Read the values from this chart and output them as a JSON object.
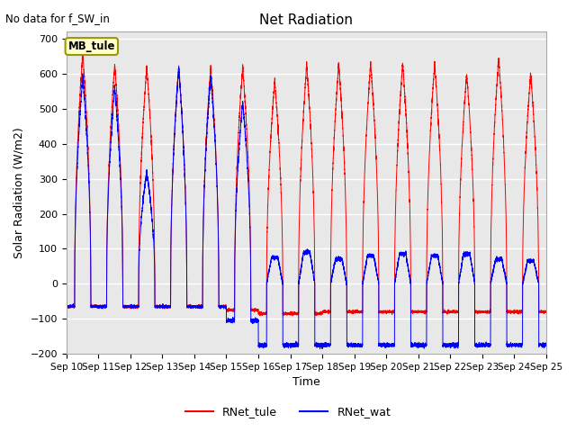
{
  "title": "Net Radiation",
  "subtitle": "No data for f_SW_in",
  "xlabel": "Time",
  "ylabel": "Solar Radiation (W/m2)",
  "ylim": [
    -200,
    720
  ],
  "yticks": [
    -200,
    -100,
    0,
    100,
    200,
    300,
    400,
    500,
    600,
    700
  ],
  "legend_labels": [
    "RNet_tule",
    "RNet_wat"
  ],
  "legend_colors": [
    "red",
    "blue"
  ],
  "box_label": "MB_tule",
  "box_color": "#ffffcc",
  "box_edge_color": "#999900",
  "plot_bg_color": "#e8e8e8",
  "grid_color": "white",
  "line_color_red": "red",
  "line_color_blue": "blue",
  "n_days": 15,
  "figsize": [
    6.4,
    4.8
  ],
  "dpi": 100,
  "day_params": [
    {
      "peak_r": 660,
      "peak_b": 595,
      "night_r": -65,
      "night_b": -65,
      "b_deep": false,
      "day_start": 6.2,
      "day_end": 18.3
    },
    {
      "peak_r": 625,
      "peak_b": 560,
      "night_r": -65,
      "night_b": -65,
      "b_deep": false,
      "day_start": 6.2,
      "day_end": 18.3
    },
    {
      "peak_r": 620,
      "peak_b": 320,
      "night_r": -65,
      "night_b": -65,
      "b_deep": false,
      "day_start": 6.2,
      "day_end": 18.3
    },
    {
      "peak_r": 620,
      "peak_b": 615,
      "night_r": -65,
      "night_b": -65,
      "b_deep": false,
      "day_start": 6.2,
      "day_end": 18.3
    },
    {
      "peak_r": 620,
      "peak_b": 595,
      "night_r": -65,
      "night_b": -65,
      "b_deep": false,
      "day_start": 6.2,
      "day_end": 18.3
    },
    {
      "peak_r": 620,
      "peak_b": 520,
      "night_r": -75,
      "night_b": -105,
      "b_deep": true,
      "day_start": 6.2,
      "day_end": 18.3
    },
    {
      "peak_r": 580,
      "peak_b": 75,
      "night_r": -85,
      "night_b": -175,
      "b_deep": true,
      "day_start": 6.2,
      "day_end": 18.3
    },
    {
      "peak_r": 625,
      "peak_b": 90,
      "night_r": -85,
      "night_b": -175,
      "b_deep": true,
      "day_start": 6.2,
      "day_end": 18.3
    },
    {
      "peak_r": 630,
      "peak_b": 70,
      "night_r": -80,
      "night_b": -175,
      "b_deep": true,
      "day_start": 6.2,
      "day_end": 18.3
    },
    {
      "peak_r": 630,
      "peak_b": 80,
      "night_r": -80,
      "night_b": -175,
      "b_deep": true,
      "day_start": 6.2,
      "day_end": 18.3
    },
    {
      "peak_r": 630,
      "peak_b": 85,
      "night_r": -80,
      "night_b": -175,
      "b_deep": true,
      "day_start": 6.2,
      "day_end": 18.3
    },
    {
      "peak_r": 630,
      "peak_b": 80,
      "night_r": -80,
      "night_b": -175,
      "b_deep": true,
      "day_start": 6.2,
      "day_end": 18.3
    },
    {
      "peak_r": 600,
      "peak_b": 85,
      "night_r": -80,
      "night_b": -175,
      "b_deep": true,
      "day_start": 6.2,
      "day_end": 18.3
    },
    {
      "peak_r": 645,
      "peak_b": 70,
      "night_r": -80,
      "night_b": -175,
      "b_deep": true,
      "day_start": 6.2,
      "day_end": 18.3
    },
    {
      "peak_r": 600,
      "peak_b": 65,
      "night_r": -80,
      "night_b": -175,
      "b_deep": true,
      "day_start": 6.2,
      "day_end": 18.3
    }
  ]
}
